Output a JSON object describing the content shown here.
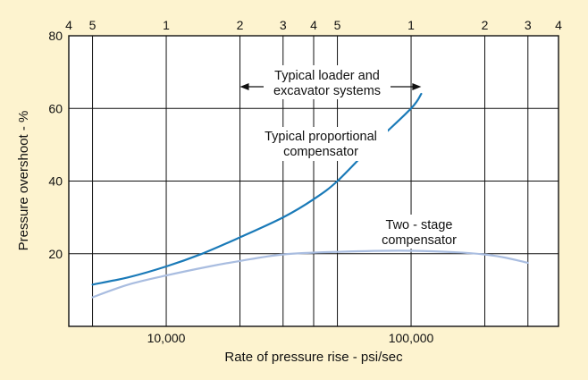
{
  "chart_data": {
    "type": "line",
    "title": "",
    "xlabel": "Rate of pressure rise - psi/sec",
    "ylabel": "Pressure overshoot - %",
    "xscale": "log",
    "xlim": [
      4000,
      400000
    ],
    "ylim": [
      0,
      80
    ],
    "grid": true,
    "x_tick_labels_bottom": [
      {
        "x": 10000,
        "label": "10,000"
      },
      {
        "x": 100000,
        "label": "100,000"
      }
    ],
    "x_tick_labels_top": [
      {
        "x": 4000,
        "label": "4"
      },
      {
        "x": 5000,
        "label": "5"
      },
      {
        "x": 10000,
        "label": "1"
      },
      {
        "x": 20000,
        "label": "2"
      },
      {
        "x": 30000,
        "label": "3"
      },
      {
        "x": 40000,
        "label": "4"
      },
      {
        "x": 50000,
        "label": "5"
      },
      {
        "x": 100000,
        "label": "1"
      },
      {
        "x": 200000,
        "label": "2"
      },
      {
        "x": 300000,
        "label": "3"
      },
      {
        "x": 400000,
        "label": "4"
      }
    ],
    "y_ticks": [
      {
        "y": 20,
        "label": "20"
      },
      {
        "y": 40,
        "label": "40"
      },
      {
        "y": 60,
        "label": "60"
      },
      {
        "y": 80,
        "label": "80"
      }
    ],
    "series": [
      {
        "name": "Typical proportional compensator",
        "color": "#1a7ab8",
        "x": [
          5000,
          7000,
          10000,
          14000,
          20000,
          30000,
          40000,
          50000,
          70000,
          100000,
          110000
        ],
        "y": [
          11.5,
          13.5,
          16.5,
          20,
          24.5,
          30,
          35,
          40,
          50,
          60,
          64
        ]
      },
      {
        "name": "Two-stage compensator",
        "color": "#a9bde0",
        "x": [
          5000,
          7000,
          10000,
          15000,
          20000,
          30000,
          50000,
          100000,
          200000,
          300000
        ],
        "y": [
          8,
          11.5,
          14,
          16.5,
          18,
          19.8,
          20.5,
          20.8,
          19.8,
          17.5
        ]
      }
    ],
    "annotations": [
      {
        "text_lines": [
          "Typical loader and",
          "excavator systems"
        ],
        "range_x": [
          20000,
          110000
        ],
        "arrow": "double"
      },
      {
        "text_lines": [
          "Typical proportional",
          "compensator"
        ]
      },
      {
        "text_lines": [
          "Two - stage",
          "compensator"
        ]
      }
    ]
  }
}
